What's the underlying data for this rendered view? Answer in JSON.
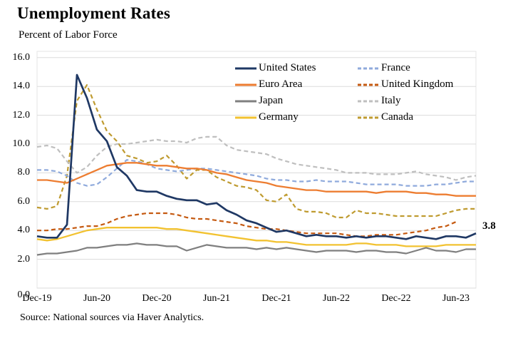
{
  "header": {
    "title": "Unemployment Rates",
    "subtitle": "Percent of Labor Force"
  },
  "footer": {
    "source": "Source: National sources via Haver Analytics."
  },
  "chart_data": {
    "type": "line",
    "title": "Unemployment Rates",
    "ylabel": "Percent of Labor Force",
    "ylim": [
      0,
      16
    ],
    "y_tick_labels": [
      "0.0",
      "2.0",
      "4.0",
      "6.0",
      "8.0",
      "10.0",
      "12.0",
      "14.0",
      "16.0"
    ],
    "x_tick_labels": [
      "Dec-19",
      "Jun-20",
      "Dec-20",
      "Jun-21",
      "Dec-21",
      "Jun-22",
      "Dec-22",
      "Jun-23"
    ],
    "x_tick_indices": [
      0,
      6,
      12,
      18,
      24,
      30,
      36,
      42
    ],
    "grid": "horizontal",
    "legend_position": "top-right two-column",
    "annotation": {
      "text": "3.8",
      "series": "United States",
      "x_month": "Aug-23",
      "value": 3.8
    },
    "x_months": [
      "Dec-19",
      "Jan-20",
      "Feb-20",
      "Mar-20",
      "Apr-20",
      "May-20",
      "Jun-20",
      "Jul-20",
      "Aug-20",
      "Sep-20",
      "Oct-20",
      "Nov-20",
      "Dec-20",
      "Jan-21",
      "Feb-21",
      "Mar-21",
      "Apr-21",
      "May-21",
      "Jun-21",
      "Jul-21",
      "Aug-21",
      "Sep-21",
      "Oct-21",
      "Nov-21",
      "Dec-21",
      "Jan-22",
      "Feb-22",
      "Mar-22",
      "Apr-22",
      "May-22",
      "Jun-22",
      "Jul-22",
      "Aug-22",
      "Sep-22",
      "Oct-22",
      "Nov-22",
      "Dec-22",
      "Jan-23",
      "Feb-23",
      "Mar-23",
      "Apr-23",
      "May-23",
      "Jun-23",
      "Jul-23",
      "Aug-23"
    ],
    "series": [
      {
        "name": "United States",
        "color": "#1F3864",
        "style": "solid",
        "width": 2.7,
        "z": 8,
        "values": [
          3.6,
          3.5,
          3.5,
          4.4,
          14.8,
          13.2,
          11.0,
          10.2,
          8.4,
          7.8,
          6.8,
          6.7,
          6.7,
          6.4,
          6.2,
          6.1,
          6.1,
          5.8,
          5.9,
          5.4,
          5.1,
          4.7,
          4.5,
          4.2,
          3.9,
          4.0,
          3.8,
          3.6,
          3.7,
          3.6,
          3.6,
          3.5,
          3.6,
          3.5,
          3.6,
          3.6,
          3.5,
          3.4,
          3.6,
          3.5,
          3.4,
          3.6,
          3.6,
          3.5,
          3.8
        ]
      },
      {
        "name": "France",
        "color": "#8FAADC",
        "style": "dashed",
        "width": 2.2,
        "z": 3,
        "values": [
          8.2,
          8.2,
          8.1,
          7.8,
          7.3,
          7.1,
          7.2,
          7.7,
          8.3,
          8.9,
          8.8,
          8.6,
          8.3,
          8.2,
          8.1,
          8.2,
          8.3,
          8.3,
          8.2,
          8.1,
          8.0,
          7.9,
          7.8,
          7.6,
          7.5,
          7.5,
          7.4,
          7.4,
          7.5,
          7.4,
          7.4,
          7.4,
          7.3,
          7.2,
          7.2,
          7.2,
          7.2,
          7.1,
          7.1,
          7.1,
          7.2,
          7.2,
          7.3,
          7.4,
          7.4
        ]
      },
      {
        "name": "Euro Area",
        "color": "#ED7D31",
        "style": "solid",
        "width": 2.3,
        "z": 7,
        "values": [
          7.5,
          7.5,
          7.4,
          7.3,
          7.6,
          7.9,
          8.2,
          8.5,
          8.6,
          8.7,
          8.7,
          8.6,
          8.5,
          8.5,
          8.4,
          8.3,
          8.3,
          8.2,
          8.0,
          7.9,
          7.7,
          7.5,
          7.4,
          7.3,
          7.1,
          7.0,
          6.9,
          6.8,
          6.8,
          6.7,
          6.7,
          6.7,
          6.7,
          6.7,
          6.6,
          6.7,
          6.7,
          6.7,
          6.6,
          6.6,
          6.5,
          6.5,
          6.4,
          6.4,
          6.4
        ]
      },
      {
        "name": "United Kingdom",
        "color": "#C55A11",
        "style": "dashed",
        "width": 2.2,
        "z": 4,
        "values": [
          4.0,
          4.0,
          4.1,
          4.1,
          4.2,
          4.3,
          4.3,
          4.5,
          4.8,
          5.0,
          5.1,
          5.2,
          5.2,
          5.2,
          5.1,
          4.9,
          4.8,
          4.8,
          4.7,
          4.6,
          4.5,
          4.3,
          4.2,
          4.1,
          4.1,
          4.0,
          3.9,
          3.8,
          3.8,
          3.8,
          3.8,
          3.7,
          3.6,
          3.6,
          3.7,
          3.7,
          3.7,
          3.8,
          3.9,
          4.0,
          4.2,
          4.3,
          4.6
        ]
      },
      {
        "name": "Japan",
        "color": "#7F7F7F",
        "style": "solid",
        "width": 2.2,
        "z": 5,
        "values": [
          2.3,
          2.4,
          2.4,
          2.5,
          2.6,
          2.8,
          2.8,
          2.9,
          3.0,
          3.0,
          3.1,
          3.0,
          3.0,
          2.9,
          2.9,
          2.6,
          2.8,
          3.0,
          2.9,
          2.8,
          2.8,
          2.8,
          2.7,
          2.8,
          2.7,
          2.8,
          2.7,
          2.6,
          2.5,
          2.6,
          2.6,
          2.6,
          2.5,
          2.6,
          2.6,
          2.5,
          2.5,
          2.4,
          2.6,
          2.8,
          2.6,
          2.6,
          2.5,
          2.7,
          2.7
        ]
      },
      {
        "name": "Italy",
        "color": "#BFBFBF",
        "style": "dashed",
        "width": 2.2,
        "z": 2,
        "values": [
          9.8,
          9.9,
          9.7,
          8.8,
          8.0,
          8.4,
          9.2,
          9.8,
          10.0,
          10.0,
          10.1,
          10.2,
          10.3,
          10.2,
          10.2,
          10.1,
          10.4,
          10.5,
          10.5,
          9.9,
          9.6,
          9.5,
          9.4,
          9.3,
          9.0,
          8.8,
          8.6,
          8.5,
          8.4,
          8.3,
          8.2,
          8.0,
          8.0,
          8.0,
          7.9,
          7.9,
          7.9,
          8.0,
          8.1,
          7.9,
          7.8,
          7.7,
          7.5,
          7.7,
          7.8
        ]
      },
      {
        "name": "Germany",
        "color": "#F2C230",
        "style": "solid",
        "width": 2.3,
        "z": 6,
        "values": [
          3.4,
          3.3,
          3.4,
          3.6,
          3.8,
          4.0,
          4.1,
          4.2,
          4.2,
          4.2,
          4.2,
          4.2,
          4.2,
          4.1,
          4.1,
          4.0,
          3.9,
          3.8,
          3.7,
          3.6,
          3.5,
          3.4,
          3.3,
          3.3,
          3.2,
          3.2,
          3.1,
          3.0,
          3.0,
          3.0,
          3.0,
          3.0,
          3.1,
          3.1,
          3.0,
          3.0,
          3.0,
          2.9,
          2.9,
          2.9,
          2.9,
          3.0,
          3.0,
          3.0,
          3.0
        ]
      },
      {
        "name": "Canada",
        "color": "#BF9B30",
        "style": "dashed",
        "width": 2.2,
        "z": 1,
        "values": [
          5.6,
          5.5,
          5.7,
          7.8,
          13.0,
          14.1,
          12.4,
          10.9,
          10.2,
          9.2,
          9.0,
          8.7,
          8.8,
          9.2,
          8.5,
          7.6,
          8.2,
          8.2,
          7.7,
          7.4,
          7.1,
          7.0,
          6.8,
          6.1,
          6.0,
          6.5,
          5.5,
          5.3,
          5.3,
          5.2,
          4.9,
          4.9,
          5.4,
          5.2,
          5.2,
          5.1,
          5.0,
          5.0,
          5.0,
          5.0,
          5.0,
          5.2,
          5.4,
          5.5,
          5.5
        ]
      }
    ]
  }
}
